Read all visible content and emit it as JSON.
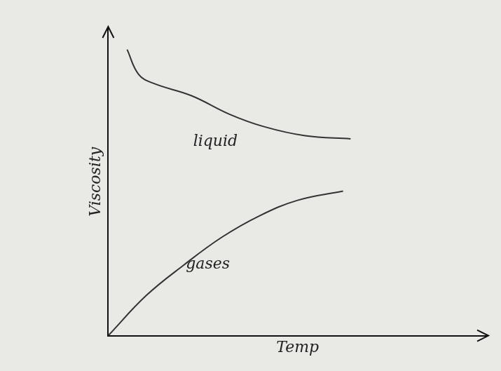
{
  "chart_data": {
    "type": "line",
    "x_label": "Temp",
    "y_label": "Viscosity",
    "xlim": [
      0,
      10
    ],
    "ylim": [
      0,
      10
    ],
    "tick_labels": false,
    "grid": false,
    "series": [
      {
        "name": "liquid",
        "color": "#333333",
        "line_style": "solid",
        "x": [
          0.5,
          0.8,
          1.2,
          2.2,
          3.2,
          4.1,
          5.2,
          6.4
        ],
        "values": [
          9.3,
          8.5,
          8.2,
          7.8,
          7.2,
          6.8,
          6.5,
          6.4
        ]
      },
      {
        "name": "gases",
        "color": "#333333",
        "line_style": "solid",
        "x": [
          0,
          1,
          2,
          3,
          4,
          5,
          6.2
        ],
        "values": [
          0,
          1.3,
          2.3,
          3.2,
          3.9,
          4.4,
          4.7
        ]
      }
    ]
  }
}
